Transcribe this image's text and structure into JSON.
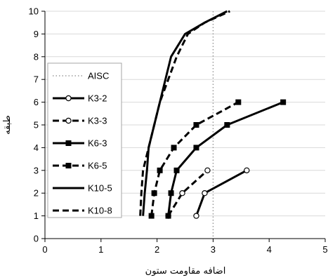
{
  "chart_data": {
    "type": "line",
    "xlabel": "اضافه مقاومت ستون",
    "ylabel": "طبقه",
    "xlim": [
      0,
      5
    ],
    "ylim": [
      0,
      10
    ],
    "xticks": [
      "0",
      "1",
      "2",
      "3",
      "4",
      "5"
    ],
    "yticks": [
      "0",
      "1",
      "2",
      "3",
      "4",
      "5",
      "6",
      "7",
      "8",
      "9",
      "10"
    ],
    "grid": "horizontal",
    "legend_position": "left",
    "reference_line": {
      "name": "AISC",
      "x": 3.0,
      "style": "dotted",
      "color": "#888888"
    },
    "series": [
      {
        "name": "K3-2",
        "line": "solid",
        "marker": "open-circle",
        "x": [
          2.7,
          2.85,
          3.6
        ],
        "y": [
          1,
          2,
          3
        ]
      },
      {
        "name": "K3-3",
        "line": "dashed",
        "marker": "open-circle",
        "x": [
          2.2,
          2.45,
          2.9
        ],
        "y": [
          1,
          2,
          3
        ]
      },
      {
        "name": "K6-3",
        "line": "solid",
        "marker": "filled-square",
        "x": [
          2.2,
          2.25,
          2.35,
          2.7,
          3.25,
          4.25
        ],
        "y": [
          1,
          2,
          3,
          4,
          5,
          6
        ]
      },
      {
        "name": "K6-5",
        "line": "dashed",
        "marker": "filled-square",
        "x": [
          1.9,
          1.95,
          2.05,
          2.3,
          2.7,
          3.45
        ],
        "y": [
          1,
          2,
          3,
          4,
          5,
          6
        ]
      },
      {
        "name": "K10-5",
        "line": "solid",
        "marker": "none",
        "x": [
          1.75,
          1.78,
          1.82,
          1.85,
          1.95,
          2.05,
          2.15,
          2.25,
          2.5,
          2.85,
          3.25
        ],
        "y": [
          1,
          2,
          3,
          4,
          5,
          6,
          7,
          8,
          9,
          9.5,
          10
        ]
      },
      {
        "name": "K10-8",
        "line": "dashed",
        "marker": "none",
        "x": [
          1.7,
          1.72,
          1.75,
          1.85,
          1.95,
          2.05,
          2.2,
          2.35,
          2.55,
          2.85,
          3.3
        ],
        "y": [
          1,
          2,
          3,
          4,
          5,
          6,
          7,
          8,
          9,
          9.5,
          10
        ]
      }
    ]
  }
}
